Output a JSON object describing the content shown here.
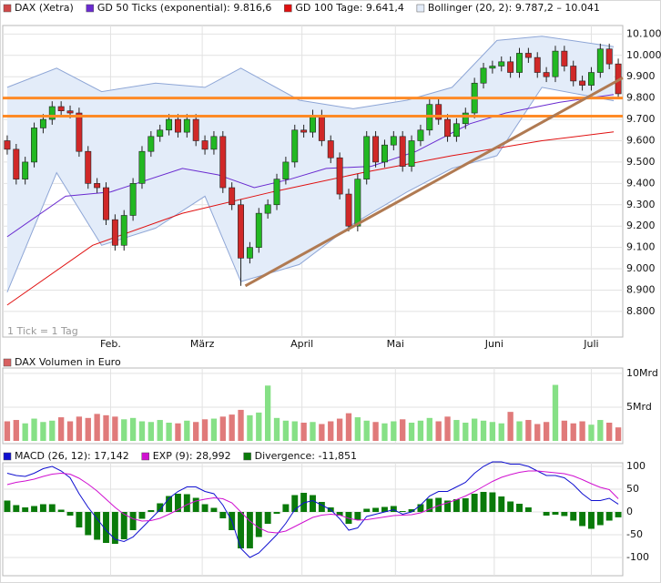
{
  "chart_data": [
    {
      "type": "candlestick",
      "note": "1 Tick = 1 Tag",
      "candles": {
        "name": "DAX (Xetra)",
        "color": "#d04848",
        "up_color": "#22b822",
        "down_color": "#d02828",
        "values": [
          [
            9600,
            9625,
            9535,
            9560
          ],
          [
            9560,
            9585,
            9395,
            9420
          ],
          [
            9420,
            9525,
            9395,
            9500
          ],
          [
            9500,
            9685,
            9475,
            9660
          ],
          [
            9660,
            9725,
            9635,
            9700
          ],
          [
            9700,
            9785,
            9675,
            9760
          ],
          [
            9760,
            9785,
            9715,
            9740
          ],
          [
            9740,
            9765,
            9705,
            9730
          ],
          [
            9730,
            9755,
            9525,
            9550
          ],
          [
            9550,
            9575,
            9375,
            9400
          ],
          [
            9400,
            9425,
            9355,
            9380
          ],
          [
            9380,
            9405,
            9205,
            9230
          ],
          [
            9230,
            9255,
            9085,
            9110
          ],
          [
            9110,
            9275,
            9085,
            9250
          ],
          [
            9250,
            9425,
            9225,
            9400
          ],
          [
            9400,
            9575,
            9375,
            9550
          ],
          [
            9550,
            9645,
            9525,
            9620
          ],
          [
            9620,
            9675,
            9595,
            9650
          ],
          [
            9650,
            9725,
            9625,
            9700
          ],
          [
            9700,
            9725,
            9615,
            9640
          ],
          [
            9640,
            9725,
            9615,
            9700
          ],
          [
            9700,
            9725,
            9575,
            9600
          ],
          [
            9600,
            9625,
            9535,
            9560
          ],
          [
            9560,
            9645,
            9535,
            9620
          ],
          [
            9620,
            9645,
            9355,
            9380
          ],
          [
            9380,
            9405,
            9275,
            9300
          ],
          [
            9300,
            9325,
            8920,
            9050
          ],
          [
            9050,
            9125,
            9025,
            9100
          ],
          [
            9100,
            9285,
            9075,
            9260
          ],
          [
            9260,
            9325,
            9235,
            9300
          ],
          [
            9300,
            9445,
            9275,
            9420
          ],
          [
            9420,
            9525,
            9395,
            9500
          ],
          [
            9500,
            9675,
            9475,
            9650
          ],
          [
            9650,
            9675,
            9615,
            9640
          ],
          [
            9640,
            9745,
            9615,
            9720
          ],
          [
            9720,
            9745,
            9575,
            9600
          ],
          [
            9600,
            9625,
            9495,
            9520
          ],
          [
            9520,
            9545,
            9325,
            9350
          ],
          [
            9350,
            9375,
            9175,
            9200
          ],
          [
            9200,
            9445,
            9175,
            9420
          ],
          [
            9420,
            9645,
            9395,
            9620
          ],
          [
            9620,
            9645,
            9475,
            9500
          ],
          [
            9500,
            9605,
            9475,
            9580
          ],
          [
            9580,
            9645,
            9555,
            9620
          ],
          [
            9620,
            9645,
            9455,
            9480
          ],
          [
            9480,
            9625,
            9455,
            9600
          ],
          [
            9600,
            9675,
            9575,
            9650
          ],
          [
            9650,
            9795,
            9625,
            9770
          ],
          [
            9770,
            9795,
            9675,
            9700
          ],
          [
            9700,
            9725,
            9595,
            9620
          ],
          [
            9620,
            9705,
            9595,
            9680
          ],
          [
            9680,
            9755,
            9655,
            9730
          ],
          [
            9730,
            9895,
            9705,
            9870
          ],
          [
            9870,
            9965,
            9845,
            9940
          ],
          [
            9940,
            9975,
            9915,
            9950
          ],
          [
            9950,
            9995,
            9925,
            9970
          ],
          [
            9970,
            9995,
            9895,
            9920
          ],
          [
            9920,
            10035,
            9895,
            10010
          ],
          [
            10010,
            10035,
            9965,
            9990
          ],
          [
            9990,
            10015,
            9895,
            9920
          ],
          [
            9920,
            9945,
            9875,
            9900
          ],
          [
            9900,
            10045,
            9875,
            10020
          ],
          [
            10020,
            10045,
            9925,
            9950
          ],
          [
            9950,
            9975,
            9855,
            9880
          ],
          [
            9880,
            9905,
            9835,
            9860
          ],
          [
            9860,
            9945,
            9835,
            9920
          ],
          [
            9920,
            10055,
            9895,
            10030
          ],
          [
            10030,
            10055,
            9935,
            9960
          ],
          [
            9960,
            9985,
            9795,
            9820
          ]
        ]
      },
      "lines": [
        {
          "name": "GD 50 Ticks (exponential): 9.816,6",
          "color": "#6a2bd0",
          "x": [
            0,
            6.5,
            11.5,
            19.5,
            23.5,
            27.5,
            31.5,
            35.5,
            40.5,
            45.5,
            51.5,
            55.5,
            61.5,
            67.5
          ],
          "values": [
            9150,
            9340,
            9360,
            9470,
            9440,
            9380,
            9420,
            9470,
            9480,
            9550,
            9680,
            9730,
            9780,
            9816.6
          ]
        },
        {
          "name": "GD 100 Tage: 9.641,4",
          "color": "#e01010",
          "x": [
            0,
            9.5,
            19.5,
            29.5,
            39.5,
            49.5,
            59.5,
            67.5
          ],
          "values": [
            8830,
            9110,
            9260,
            9360,
            9450,
            9530,
            9600,
            9641.4
          ]
        }
      ],
      "bollinger": {
        "name": "Bollinger (20, 2): 9.787,2 – 10.041",
        "color": "#8ea6d6",
        "fill": "#e3ecf9",
        "x": [
          0,
          5.5,
          10.5,
          16.5,
          22,
          26,
          32.5,
          38.5,
          44.5,
          49.5,
          54.5,
          59.5,
          67.5
        ],
        "upper": [
          9850,
          9940,
          9830,
          9870,
          9850,
          9940,
          9790,
          9750,
          9790,
          9850,
          10070,
          10090,
          10041
        ],
        "lower": [
          8890,
          9450,
          9110,
          9190,
          9340,
          8940,
          9020,
          9210,
          9360,
          9470,
          9530,
          9850,
          9787.2
        ]
      },
      "hlines": {
        "color": "#ff8a26",
        "values": [
          9800,
          9715
        ]
      },
      "trendline": {
        "color": "#b07a52",
        "x": [
          26.5,
          68.5
        ],
        "values": [
          8920,
          9895
        ]
      },
      "xlim": [
        -0.5,
        68.5
      ],
      "xticks": [
        {
          "value": 11.5,
          "label": "Feb."
        },
        {
          "value": 21.7,
          "label": "März"
        },
        {
          "value": 32.8,
          "label": "April"
        },
        {
          "value": 43.2,
          "label": "Mai"
        },
        {
          "value": 54.2,
          "label": "Juni"
        },
        {
          "value": 65,
          "label": "Juli"
        }
      ],
      "ylim": [
        8680,
        10140
      ],
      "yticks": [
        {
          "value": 8800,
          "label": "8.800"
        },
        {
          "value": 8900,
          "label": "8.900"
        },
        {
          "value": 9000,
          "label": "9.000"
        },
        {
          "value": 9100,
          "label": "9.100"
        },
        {
          "value": 9200,
          "label": "9.200"
        },
        {
          "value": 9300,
          "label": "9.300"
        },
        {
          "value": 9400,
          "label": "9.400"
        },
        {
          "value": 9500,
          "label": "9.500"
        },
        {
          "value": 9600,
          "label": "9.600"
        },
        {
          "value": 9700,
          "label": "9.700"
        },
        {
          "value": 9800,
          "label": "9.800"
        },
        {
          "value": 9900,
          "label": "9.900"
        },
        {
          "value": 10000,
          "label": "10.000"
        },
        {
          "value": 10100,
          "label": "10.100"
        }
      ],
      "grid": true
    },
    {
      "type": "bar",
      "series": [
        {
          "name": "DAX Volumen in Euro",
          "color": "#d86060",
          "up_color": "#86e086",
          "down_color": "#e07a7a",
          "values": [
            2.9,
            3.1,
            2.6,
            3.3,
            2.8,
            3.0,
            3.5,
            2.9,
            3.6,
            3.4,
            4.0,
            3.8,
            3.6,
            3.2,
            3.4,
            2.9,
            2.8,
            3.1,
            2.7,
            2.6,
            3.0,
            2.8,
            3.2,
            3.3,
            3.6,
            3.9,
            4.6,
            3.8,
            4.2,
            8.2,
            3.4,
            3.0,
            2.9,
            2.7,
            2.8,
            2.5,
            2.9,
            3.3,
            4.1,
            3.5,
            3.0,
            2.8,
            2.6,
            2.9,
            3.2,
            2.7,
            3.0,
            3.4,
            2.9,
            3.6,
            3.1,
            2.7,
            3.3,
            3.0,
            2.8,
            2.6,
            4.3,
            2.9,
            3.1,
            2.5,
            2.8,
            8.3,
            3.0,
            2.6,
            2.9,
            2.4,
            3.1,
            2.7,
            2.0
          ]
        }
      ],
      "ylim": [
        0,
        10.8
      ],
      "yticks": [
        {
          "value": 10,
          "label": "10Mrd"
        },
        {
          "value": 5,
          "label": "5Mrd"
        }
      ],
      "grid": true
    },
    {
      "type": "line",
      "series": [
        {
          "name": "MACD (26, 12): 17,142",
          "color": "#1010d0",
          "kind": "line",
          "values": [
            85,
            80,
            78,
            85,
            95,
            100,
            90,
            75,
            40,
            10,
            -15,
            -40,
            -60,
            -65,
            -55,
            -35,
            -15,
            5,
            30,
            45,
            55,
            55,
            45,
            40,
            15,
            -20,
            -80,
            -100,
            -90,
            -70,
            -50,
            -25,
            5,
            20,
            25,
            15,
            5,
            -15,
            -40,
            -35,
            -10,
            -5,
            0,
            5,
            -5,
            0,
            15,
            35,
            45,
            45,
            55,
            65,
            85,
            100,
            110,
            110,
            105,
            105,
            100,
            90,
            80,
            80,
            75,
            60,
            40,
            25,
            25,
            30,
            17.142
          ]
        },
        {
          "name": "EXP (9): 28,992",
          "color": "#d010d0",
          "kind": "line",
          "values": [
            60,
            65,
            68,
            72,
            78,
            83,
            85,
            83,
            74,
            61,
            46,
            28,
            10,
            -5,
            -15,
            -20,
            -19,
            -14,
            -5,
            5,
            16,
            24,
            28,
            31,
            29,
            20,
            0,
            -20,
            -35,
            -44,
            -46,
            -42,
            -32,
            -22,
            -12,
            -7,
            -5,
            -7,
            -14,
            -18,
            -17,
            -14,
            -11,
            -8,
            -7,
            -6,
            -2,
            6,
            14,
            20,
            27,
            35,
            45,
            56,
            67,
            76,
            82,
            87,
            90,
            90,
            88,
            86,
            84,
            79,
            71,
            62,
            54,
            49,
            28.992
          ]
        },
        {
          "name": "Divergence: -11,851",
          "color": "#0a7a0a",
          "kind": "bar",
          "values": [
            25,
            15,
            10,
            13,
            17,
            17,
            5,
            -8,
            -34,
            -51,
            -61,
            -68,
            -70,
            -60,
            -40,
            -15,
            4,
            19,
            35,
            40,
            39,
            31,
            17,
            9,
            -14,
            -40,
            -80,
            -80,
            -55,
            -26,
            -4,
            17,
            37,
            42,
            37,
            22,
            10,
            -8,
            -26,
            -17,
            7,
            9,
            11,
            13,
            2,
            6,
            17,
            29,
            31,
            25,
            28,
            30,
            40,
            44,
            43,
            34,
            23,
            18,
            10,
            0,
            -8,
            -6,
            -9,
            -19,
            -31,
            -37,
            -29,
            -19,
            -11.851
          ]
        }
      ],
      "ylim": [
        -140,
        108
      ],
      "yticks": [
        100,
        50,
        0,
        -50,
        -100
      ],
      "grid": true
    }
  ]
}
